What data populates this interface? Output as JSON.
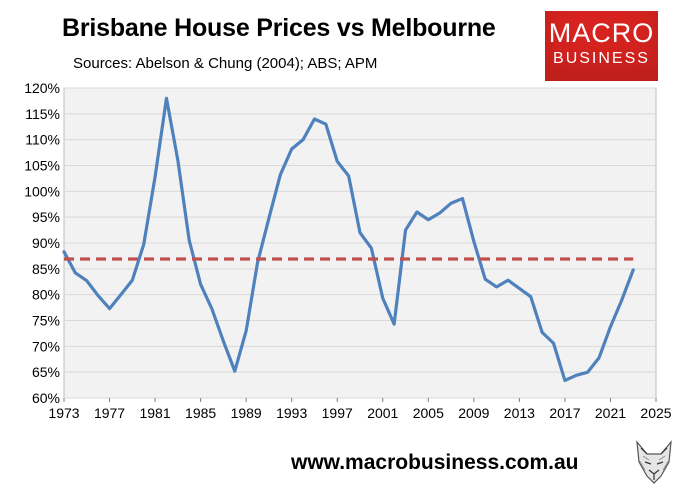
{
  "title": "Brisbane House Prices vs Melbourne",
  "subtitle": "Sources: Abelson & Chung (2004); ABS; APM",
  "logo": {
    "line1": "MACRO",
    "line2": "BUSINESS"
  },
  "footer": {
    "url": "www.macrobusiness.com.au"
  },
  "colors": {
    "series": "#4f81bd",
    "average": "#c0504d",
    "plot_background": "#f2f2f2",
    "gridline": "#d9d9d9",
    "logo": "#d6231f"
  },
  "chart_data": {
    "type": "line",
    "title": "Brisbane House Prices vs Melbourne",
    "xlabel": "",
    "ylabel": "",
    "xlim": [
      1973,
      2025
    ],
    "ylim": [
      60,
      120
    ],
    "x_ticks": [
      "1973",
      "1977",
      "1981",
      "1985",
      "1989",
      "1993",
      "1997",
      "2001",
      "2005",
      "2009",
      "2013",
      "2017",
      "2021",
      "2025"
    ],
    "y_ticks": [
      "60%",
      "65%",
      "70%",
      "75%",
      "80%",
      "85%",
      "90%",
      "95%",
      "100%",
      "105%",
      "110%",
      "115%",
      "120%"
    ],
    "grid": true,
    "legend": "none",
    "series": [
      {
        "x": [
          1973,
          1974,
          1975,
          1976,
          1977,
          1978,
          1979,
          1980,
          1981,
          1982,
          1983,
          1984,
          1985,
          1986,
          1987,
          1988,
          1989,
          1990,
          1991,
          1992,
          1993,
          1994,
          1995,
          1996,
          1997,
          1998,
          1999,
          2000,
          2001,
          2002,
          2003,
          2004,
          2005,
          2006,
          2007,
          2008,
          2009,
          2010,
          2011,
          2012,
          2013,
          2014,
          2015,
          2016,
          2017,
          2018,
          2019,
          2020,
          2021,
          2022,
          2023
        ],
        "values": [
          88.3,
          84.2,
          82.7,
          79.8,
          77.3,
          80.0,
          82.8,
          89.7,
          102.8,
          118.0,
          106.0,
          90.5,
          82.0,
          77.2,
          71.0,
          65.2,
          73.0,
          86.2,
          94.8,
          103.2,
          108.2,
          110.0,
          114.0,
          113.0,
          105.8,
          103.0,
          92.0,
          89.0,
          79.3,
          74.3,
          92.5,
          96.0,
          94.5,
          95.8,
          97.7,
          98.6,
          90.3,
          83.0,
          81.5,
          82.8,
          81.2,
          79.6,
          72.7,
          70.6,
          63.4,
          64.4,
          65.0,
          67.8,
          73.8,
          79.0,
          84.8
        ]
      },
      {
        "x": [
          1973,
          2023
        ],
        "values": [
          86.9,
          86.9
        ]
      }
    ]
  }
}
